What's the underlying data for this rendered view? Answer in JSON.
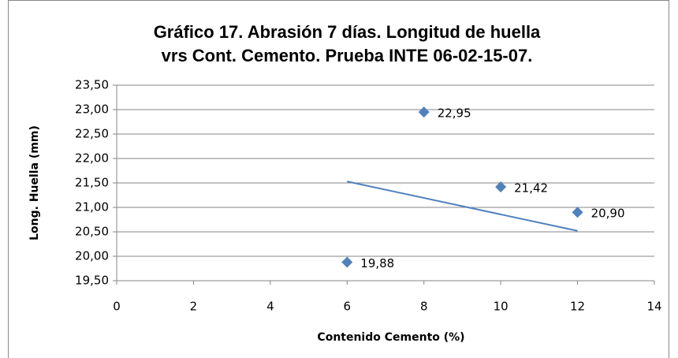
{
  "chart_data": {
    "type": "scatter",
    "title": [
      "Gráfico 17. Abrasión 7 días. Longitud de huella",
      "vrs Cont. Cemento. Prueba INTE 06-02-15-07."
    ],
    "x_label": "Contenido Cemento (%)",
    "y_label": "Long. Huella (mm)",
    "series": [
      {
        "color": "#4f81bd",
        "x": [
          6,
          8,
          10,
          12
        ],
        "values": [
          19.88,
          22.95,
          21.42,
          20.9
        ],
        "value_labels": [
          "19,88",
          "22,95",
          "21,42",
          "20,90"
        ]
      }
    ],
    "trendline": {
      "color": "#4f81bd",
      "x": [
        6,
        12
      ],
      "values": [
        21.53,
        20.52
      ]
    },
    "xlim": [
      0,
      14
    ],
    "xticks": [
      0,
      2,
      4,
      6,
      8,
      10,
      12,
      14
    ],
    "ylim": [
      19.5,
      23.5
    ],
    "yticks": [
      {
        "value": 19.5,
        "label": "19,50"
      },
      {
        "value": 20,
        "label": "20,00"
      },
      {
        "value": 20.5,
        "label": "20,50"
      },
      {
        "value": 21,
        "label": "21,00"
      },
      {
        "value": 21.5,
        "label": "21,50"
      },
      {
        "value": 22,
        "label": "22,00"
      },
      {
        "value": 22.5,
        "label": "22,50"
      },
      {
        "value": 23,
        "label": "23,00"
      },
      {
        "value": 23.5,
        "label": "23,50"
      }
    ],
    "grid": true
  }
}
